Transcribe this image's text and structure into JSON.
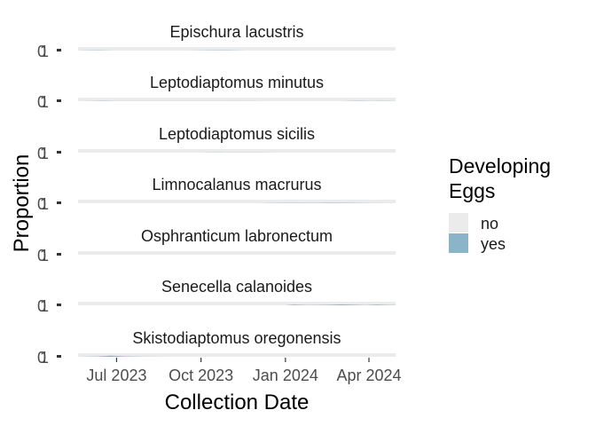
{
  "chart_data": {
    "type": "area",
    "facet_by": "species",
    "xlabel": "Collection Date",
    "ylabel": "Proportion",
    "x_ticks": [
      "Jul 2023",
      "Oct 2023",
      "Jan 2024",
      "Apr 2024"
    ],
    "y_ticks": [
      "0",
      "1"
    ],
    "xlim": [
      "2023-05-20",
      "2024-04-30"
    ],
    "ylim": [
      0,
      1
    ],
    "legend": {
      "title_lines": [
        "Developing",
        "Eggs"
      ],
      "entries": [
        {
          "label": "no",
          "color": "#ebebeb"
        },
        {
          "label": "yes",
          "color": "#8bb4c8"
        }
      ],
      "position": "right"
    },
    "panels": [
      {
        "title": "Epischura lacustris",
        "yes": [
          [
            "2023-05-20",
            0.0
          ],
          [
            "2023-06-01",
            0.05
          ],
          [
            "2023-06-12",
            0.1
          ],
          [
            "2023-06-20",
            0.02
          ],
          [
            "2023-07-01",
            0.0
          ],
          [
            "2023-08-15",
            0.0
          ],
          [
            "2023-09-15",
            0.0
          ],
          [
            "2023-10-05",
            0.06
          ],
          [
            "2023-10-20",
            0.1
          ],
          [
            "2023-11-05",
            0.06
          ],
          [
            "2023-11-20",
            0.0
          ],
          [
            "2024-04-30",
            0.0
          ]
        ]
      },
      {
        "title": "Leptodiaptomus minutus",
        "yes": [
          [
            "2023-05-20",
            0.0
          ],
          [
            "2023-06-05",
            0.04
          ],
          [
            "2023-06-15",
            0.08
          ],
          [
            "2023-07-01",
            0.03
          ],
          [
            "2023-08-01",
            0.02
          ],
          [
            "2023-09-01",
            0.04
          ],
          [
            "2023-10-01",
            0.02
          ],
          [
            "2023-11-10",
            0.03
          ],
          [
            "2023-12-20",
            0.0
          ],
          [
            "2024-03-01",
            0.0
          ],
          [
            "2024-03-20",
            0.08
          ],
          [
            "2024-04-01",
            0.04
          ],
          [
            "2024-04-15",
            0.06
          ],
          [
            "2024-04-30",
            0.03
          ]
        ]
      },
      {
        "title": "Leptodiaptomus sicilis",
        "yes": [
          [
            "2023-05-20",
            0.0
          ],
          [
            "2023-10-01",
            0.0
          ],
          [
            "2023-10-20",
            0.06
          ],
          [
            "2023-11-10",
            0.02
          ],
          [
            "2023-12-01",
            0.04
          ],
          [
            "2023-12-20",
            0.0
          ],
          [
            "2024-04-30",
            0.0
          ]
        ]
      },
      {
        "title": "Limnocalanus macrurus",
        "yes": [
          [
            "2023-05-20",
            0.0
          ],
          [
            "2023-12-01",
            0.0
          ],
          [
            "2023-12-20",
            0.05
          ],
          [
            "2024-01-10",
            0.1
          ],
          [
            "2024-02-01",
            0.06
          ],
          [
            "2024-02-20",
            0.12
          ],
          [
            "2024-03-10",
            0.08
          ],
          [
            "2024-04-01",
            0.04
          ],
          [
            "2024-04-30",
            0.0
          ]
        ]
      },
      {
        "title": "Osphranticum labronectum",
        "yes": [
          [
            "2023-05-20",
            0.0
          ],
          [
            "2024-04-30",
            0.0
          ]
        ]
      },
      {
        "title": "Senecella calanoides",
        "yes": [
          [
            "2023-05-20",
            0.0
          ],
          [
            "2024-01-01",
            0.0
          ],
          [
            "2024-01-10",
            0.2
          ],
          [
            "2024-01-25",
            0.06
          ],
          [
            "2024-02-15",
            0.12
          ],
          [
            "2024-03-01",
            0.25
          ],
          [
            "2024-03-15",
            0.15
          ],
          [
            "2024-03-28",
            0.05
          ],
          [
            "2024-04-10",
            0.2
          ],
          [
            "2024-04-20",
            0.1
          ],
          [
            "2024-04-30",
            0.05
          ]
        ]
      },
      {
        "title": "Skistodiaptomus oregonensis",
        "yes": [
          [
            "2023-05-20",
            0.0
          ],
          [
            "2023-06-10",
            0.1
          ],
          [
            "2023-06-25",
            0.3
          ],
          [
            "2023-07-10",
            0.12
          ],
          [
            "2023-08-01",
            0.03
          ],
          [
            "2023-09-01",
            0.0
          ],
          [
            "2024-04-30",
            0.0
          ]
        ]
      }
    ]
  }
}
